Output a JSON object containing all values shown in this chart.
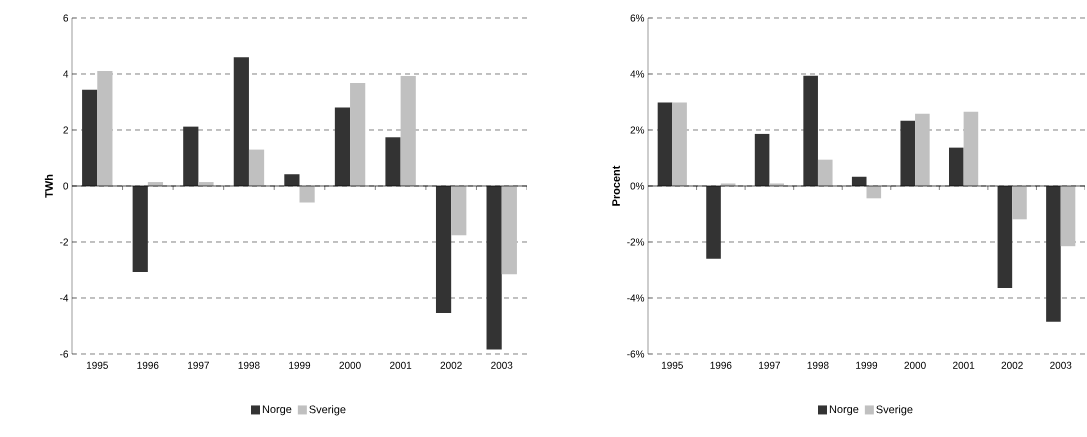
{
  "chart_data": [
    {
      "type": "bar",
      "ylabel": "TWh",
      "categories": [
        "1995",
        "1996",
        "1997",
        "1998",
        "1999",
        "2000",
        "2001",
        "2002",
        "2003"
      ],
      "series": [
        {
          "name": "Norge",
          "color": "#333333",
          "values": [
            3.44,
            -3.07,
            2.12,
            4.6,
            0.42,
            2.8,
            1.74,
            -4.54,
            -5.84
          ]
        },
        {
          "name": "Sverige",
          "color": "#c0c0c0",
          "values": [
            4.11,
            0.14,
            0.14,
            1.3,
            -0.59,
            3.68,
            3.93,
            -1.76,
            -3.15
          ]
        }
      ],
      "ylim": [
        -6,
        6
      ],
      "yticks": [
        -6,
        -4,
        -2,
        0,
        2,
        4,
        6
      ],
      "grid": "y",
      "legend": "bottom"
    },
    {
      "type": "bar",
      "ylabel": "Procent",
      "categories": [
        "1995",
        "1996",
        "1997",
        "1998",
        "1999",
        "2000",
        "2001",
        "2002",
        "2003"
      ],
      "series": [
        {
          "name": "Norge",
          "color": "#333333",
          "values": [
            2.98,
            -2.6,
            1.86,
            3.94,
            0.33,
            2.33,
            1.37,
            -3.64,
            -4.85
          ]
        },
        {
          "name": "Sverige",
          "color": "#c0c0c0",
          "values": [
            2.98,
            0.09,
            0.09,
            0.94,
            -0.44,
            2.58,
            2.65,
            -1.19,
            -2.15
          ]
        }
      ],
      "ylim": [
        -6,
        6
      ],
      "yticks": [
        {
          "value": -6,
          "label": "-6%"
        },
        {
          "value": -4,
          "label": "-4%"
        },
        {
          "value": -2,
          "label": "-2%"
        },
        {
          "value": 0,
          "label": "0%"
        },
        {
          "value": 2,
          "label": "2%"
        },
        {
          "value": 4,
          "label": "4%"
        },
        {
          "value": 6,
          "label": "6%"
        }
      ],
      "grid": "y",
      "legend": "bottom"
    }
  ]
}
